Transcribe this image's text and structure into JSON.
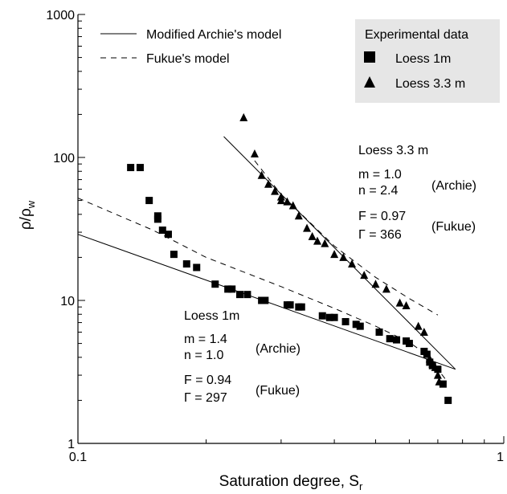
{
  "chart_data": {
    "type": "scatter",
    "x_scale": "log",
    "y_scale": "log",
    "xlabel": "Saturation degree, S",
    "xlabel_sub": "r",
    "ylabel": "ρ/ρ",
    "ylabel_sub": "w",
    "xlim": [
      0.1,
      1.0
    ],
    "ylim": [
      1,
      1000
    ],
    "grid": false,
    "x_tick_labels": [
      {
        "value": 0.1,
        "label": "0.1"
      },
      {
        "value": 1.0,
        "label": "1"
      }
    ],
    "x_minor_ticks": [
      0.2,
      0.3,
      0.4,
      0.5,
      0.6,
      0.7,
      0.8,
      0.9
    ],
    "y_tick_labels": [
      {
        "value": 1,
        "label": "1"
      },
      {
        "value": 10,
        "label": "10"
      },
      {
        "value": 100,
        "label": "100"
      },
      {
        "value": 1000,
        "label": "1000"
      }
    ],
    "legend_lines": [
      {
        "label": "Modified Archie's model",
        "style": "solid"
      },
      {
        "label": "Fukue's model",
        "style": "dashed"
      }
    ],
    "legend_data": {
      "title": "Experimental data",
      "placement": "top-right",
      "entries": [
        {
          "label": "Loess 1m",
          "marker": "square"
        },
        {
          "label": "Loess 3.3 m",
          "marker": "triangle"
        }
      ]
    },
    "series": [
      {
        "name": "Loess 1m",
        "marker": "square",
        "points": [
          [
            0.133,
            85
          ],
          [
            0.14,
            85
          ],
          [
            0.147,
            50
          ],
          [
            0.154,
            39
          ],
          [
            0.154,
            37
          ],
          [
            0.158,
            31
          ],
          [
            0.163,
            29
          ],
          [
            0.168,
            21
          ],
          [
            0.18,
            18
          ],
          [
            0.19,
            17
          ],
          [
            0.21,
            13
          ],
          [
            0.225,
            12
          ],
          [
            0.23,
            12
          ],
          [
            0.24,
            11
          ],
          [
            0.25,
            11
          ],
          [
            0.27,
            10
          ],
          [
            0.275,
            10
          ],
          [
            0.31,
            9.3
          ],
          [
            0.315,
            9.3
          ],
          [
            0.33,
            9
          ],
          [
            0.335,
            9
          ],
          [
            0.375,
            7.8
          ],
          [
            0.39,
            7.6
          ],
          [
            0.4,
            7.6
          ],
          [
            0.425,
            7.1
          ],
          [
            0.45,
            6.8
          ],
          [
            0.46,
            6.6
          ],
          [
            0.51,
            6.0
          ],
          [
            0.54,
            5.4
          ],
          [
            0.56,
            5.3
          ],
          [
            0.59,
            5.2
          ],
          [
            0.6,
            5.0
          ],
          [
            0.65,
            4.4
          ],
          [
            0.66,
            4.2
          ],
          [
            0.67,
            3.7
          ],
          [
            0.68,
            3.5
          ],
          [
            0.7,
            3.3
          ],
          [
            0.72,
            2.6
          ],
          [
            0.74,
            2.0
          ]
        ]
      },
      {
        "name": "Loess 3.3 m",
        "marker": "triangle",
        "points": [
          [
            0.245,
            190
          ],
          [
            0.26,
            106
          ],
          [
            0.27,
            75
          ],
          [
            0.28,
            65
          ],
          [
            0.29,
            58
          ],
          [
            0.3,
            53
          ],
          [
            0.3,
            50
          ],
          [
            0.31,
            49
          ],
          [
            0.32,
            46
          ],
          [
            0.33,
            39
          ],
          [
            0.345,
            32
          ],
          [
            0.355,
            28
          ],
          [
            0.365,
            26
          ],
          [
            0.38,
            25
          ],
          [
            0.4,
            21
          ],
          [
            0.42,
            20
          ],
          [
            0.44,
            18
          ],
          [
            0.47,
            15
          ],
          [
            0.5,
            13
          ],
          [
            0.53,
            12
          ],
          [
            0.57,
            9.6
          ],
          [
            0.59,
            9.2
          ],
          [
            0.63,
            6.6
          ],
          [
            0.65,
            6.0
          ],
          [
            0.67,
            3.9
          ],
          [
            0.68,
            3.6
          ],
          [
            0.69,
            3.4
          ],
          [
            0.7,
            3.0
          ],
          [
            0.705,
            2.7
          ]
        ]
      }
    ],
    "lines": [
      {
        "model": "Modified Archie's model",
        "series": "Loess 1m",
        "style": "solid",
        "points": [
          [
            0.1,
            29
          ],
          [
            0.77,
            3.3
          ]
        ]
      },
      {
        "model": "Fukue's model",
        "series": "Loess 1m",
        "style": "dashed",
        "points": [
          [
            0.1,
            52
          ],
          [
            0.15,
            31
          ],
          [
            0.2,
            20
          ],
          [
            0.3,
            12.5
          ],
          [
            0.4,
            8.8
          ],
          [
            0.5,
            6.6
          ],
          [
            0.6,
            5.1
          ],
          [
            0.65,
            4.3
          ],
          [
            0.7,
            3.3
          ],
          [
            0.73,
            2.8
          ]
        ]
      },
      {
        "model": "Modified Archie's model",
        "series": "Loess 3.3 m",
        "style": "solid",
        "points": [
          [
            0.22,
            140
          ],
          [
            0.77,
            3.3
          ]
        ]
      },
      {
        "model": "Fukue's model",
        "series": "Loess 3.3 m",
        "style": "dashed",
        "points": [
          [
            0.26,
            95
          ],
          [
            0.3,
            55
          ],
          [
            0.4,
            24
          ],
          [
            0.5,
            14.5
          ],
          [
            0.6,
            10.3
          ],
          [
            0.7,
            7.9
          ]
        ]
      }
    ],
    "annotations": {
      "loess33": {
        "title": "Loess 3.3 m",
        "m": "m = 1.0",
        "n": "n = 2.4",
        "archie": "(Archie)",
        "F": "F = 0.97",
        "gamma": "Γ = 366",
        "fukue": "(Fukue)"
      },
      "loess1": {
        "title": "Loess 1m",
        "m": "m = 1.4",
        "n": "n = 1.0",
        "archie": "(Archie)",
        "F": "F = 0.94",
        "gamma": "Γ = 297",
        "fukue": "(Fukue)"
      }
    }
  }
}
